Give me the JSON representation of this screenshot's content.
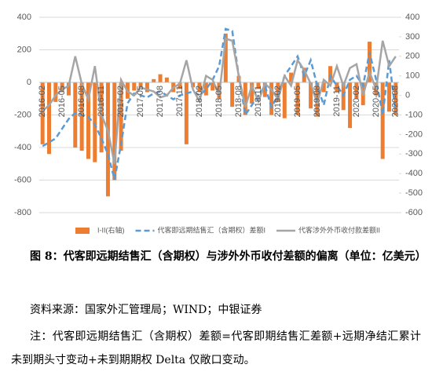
{
  "chart_data": {
    "type": "bar_line",
    "categories": [
      "2016-02",
      null,
      null,
      "2016-05",
      null,
      null,
      "2016-08",
      null,
      null,
      "2016-11",
      null,
      null,
      "2017-02",
      null,
      null,
      "2017-05",
      null,
      null,
      "2017-08",
      null,
      null,
      "2017-11",
      null,
      null,
      "2018-02",
      null,
      null,
      "2018-05",
      null,
      null,
      "2018-08",
      null,
      null,
      "2018-11",
      null,
      null,
      "2019-02",
      null,
      null,
      "2019-05",
      null,
      null,
      "2019-08",
      null,
      null,
      "2019-11",
      null,
      null,
      "2020-02",
      null,
      null,
      "2020-05",
      null,
      null,
      "2020-08"
    ],
    "series": [
      {
        "name": "I-II(右轴)",
        "color": "#ed7d31",
        "kind": "bar",
        "axis": "y",
        "values": [
          -380,
          -440,
          -120,
          -60,
          -80,
          -400,
          -420,
          -470,
          -490,
          -430,
          -700,
          -600,
          -420,
          -100,
          -50,
          -40,
          -60,
          20,
          50,
          30,
          -60,
          -40,
          -380,
          -30,
          -60,
          -80,
          -50,
          -100,
          300,
          -150,
          40,
          -200,
          -130,
          -40,
          -90,
          -200,
          -120,
          -220,
          60,
          -200,
          90,
          -160,
          -210,
          -60,
          100,
          -60,
          -170,
          -280,
          -100,
          -140,
          250,
          -80,
          -470,
          -180,
          -200
        ]
      },
      {
        "name": "代客即远期结售汇（含期权）差额I",
        "color": "#5b9bd5",
        "kind": "dashed-line",
        "axis": "y2",
        "values": [
          -260,
          -240,
          -220,
          -170,
          -120,
          -90,
          -100,
          -110,
          -150,
          -220,
          -300,
          -430,
          -250,
          -40,
          10,
          0,
          -10,
          10,
          20,
          0,
          -20,
          0,
          10,
          20,
          0,
          30,
          80,
          150,
          340,
          330,
          100,
          -100,
          -50,
          0,
          50,
          -60,
          0,
          100,
          150,
          200,
          100,
          180,
          50,
          -50,
          100,
          50,
          0,
          80,
          100,
          50,
          220,
          80,
          -100,
          180,
          -90
        ]
      },
      {
        "name": "代客涉外外币收付款差额II",
        "color": "#a5a5a5",
        "kind": "line",
        "axis": "y2",
        "values": [
          -80,
          -50,
          0,
          30,
          50,
          200,
          60,
          -20,
          150,
          -100,
          -180,
          -350,
          80,
          20,
          0,
          40,
          30,
          20,
          -10,
          0,
          40,
          60,
          180,
          30,
          -30,
          100,
          80,
          0,
          290,
          280,
          100,
          -60,
          50,
          -30,
          60,
          30,
          -20,
          100,
          50,
          180,
          130,
          60,
          -40,
          80,
          50,
          150,
          50,
          140,
          160,
          0,
          120,
          30,
          280,
          150,
          200
        ]
      }
    ],
    "ylim": [
      -800,
      400
    ],
    "yticks": [
      -800,
      -600,
      -400,
      -200,
      0,
      200,
      400
    ],
    "y2lim": [
      -600,
      400
    ],
    "y2ticks": [
      -600,
      -500,
      -400,
      -300,
      -200,
      -100,
      0,
      100,
      200,
      300,
      400
    ],
    "grid": true,
    "legend": "bottom"
  },
  "caption": "图 8：代客即远期结售汇（含期权）与涉外外币收付差额的偏离（单位：亿美元）",
  "source": "资料来源：国家外汇管理局；WIND；中银证券",
  "note": "注：代客即远期结售汇（含期权）差额=代客即期结售汇差额+远期净结汇累计未到期头寸变动+未到期期权 Delta 仅敞口变动。"
}
